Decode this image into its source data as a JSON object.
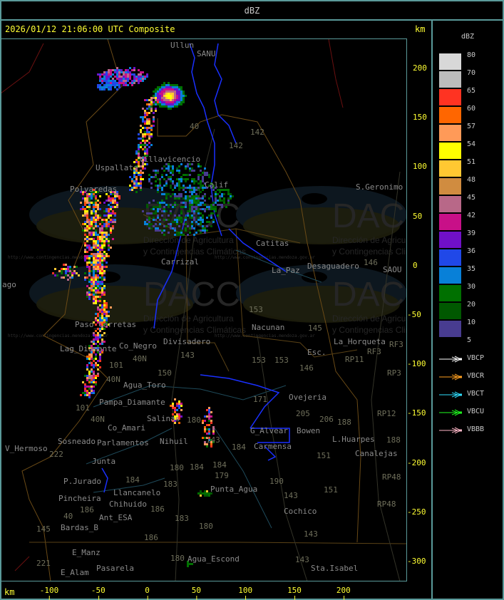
{
  "window": {
    "title": "dBZ"
  },
  "header": {
    "timestamp": "2026/01/12 21:06:00 UTC Composite",
    "unit_top": "km",
    "unit_bottom": "km"
  },
  "axes": {
    "x_ticks": [
      "-100",
      "-50",
      "0",
      "50",
      "100",
      "150",
      "200"
    ],
    "y_ticks": [
      "200",
      "150",
      "100",
      "50",
      "0",
      "-50",
      "-100",
      "-150",
      "-200",
      "-250",
      "-300"
    ]
  },
  "legend": {
    "title": "dBZ",
    "levels": [
      {
        "label": "80",
        "color": "#d8d8d8"
      },
      {
        "label": "70",
        "color": "#bcbcbc"
      },
      {
        "label": "65",
        "color": "#ff3322"
      },
      {
        "label": "60",
        "color": "#ff6600"
      },
      {
        "label": "57",
        "color": "#ff9a58"
      },
      {
        "label": "54",
        "color": "#ffff00"
      },
      {
        "label": "51",
        "color": "#ffc832"
      },
      {
        "label": "48",
        "color": "#d08c40"
      },
      {
        "label": "45",
        "color": "#b86888"
      },
      {
        "label": "42",
        "color": "#c81088"
      },
      {
        "label": "39",
        "color": "#7010c8"
      },
      {
        "label": "36",
        "color": "#2048e8"
      },
      {
        "label": "35",
        "color": "#0880d8"
      },
      {
        "label": "30",
        "color": "#007000"
      },
      {
        "label": "20",
        "color": "#005800"
      },
      {
        "label": "10",
        "color": "#483c90"
      }
    ],
    "bottom_label": "5",
    "radars": [
      {
        "label": "VBCP",
        "color": "#ffffff"
      },
      {
        "label": "VBCR",
        "color": "#ffa020"
      },
      {
        "label": "VBCT",
        "color": "#30e0ff"
      },
      {
        "label": "VBCU",
        "color": "#20ff20"
      },
      {
        "label": "VBBB",
        "color": "#ffb8c8"
      }
    ]
  },
  "watermark": {
    "logo_text": "DACC",
    "line1": "Dirección de Agricultura",
    "line2": "y Contingencias Climáticas",
    "url": "http://www.contingencias.mendoza.gov.ar"
  },
  "map": {
    "places": [
      "Ullun",
      "SANU",
      "Uspallata",
      "Villavicencio",
      "Polvaredas",
      "Calif",
      "Carrizal",
      "Catitas",
      "La_Paz",
      "Desaguadero",
      "S.Geronimo",
      "SAOU",
      "ago",
      "Paso_Carretas",
      "Lag_Diamante",
      "Co_Negro",
      "Divisadero",
      "Nacunan",
      "La_Horqueta",
      "Esc.",
      "Agua_Toro",
      "Pampa_Diamante",
      "Salinas",
      "Co_Amari",
      "Parlamentos",
      "Sosneado",
      "Nihuil",
      "V_Hermoso",
      "Junta",
      "P.Jurado",
      "Pincheira",
      "Llancanelo",
      "Chihuido",
      "Ant_ESA",
      "Bardas_B",
      "E_Manz",
      "E_Alam",
      "Pasarela",
      "Agua_Escond",
      "Punta_Agua",
      "Carmensa",
      "G_Alvear",
      "Bowen",
      "Ovejeria",
      "L.Huarpes",
      "Canalejas",
      "Cochico",
      "Sta.Isabel"
    ],
    "routes": [
      "40",
      "142",
      "142",
      "146",
      "RF3",
      "RF3",
      "RP11",
      "153",
      "153",
      "145",
      "40N",
      "143",
      "153",
      "146",
      "101",
      "40N",
      "150",
      "101",
      "40N",
      "180",
      "222",
      "180",
      "184",
      "184",
      "184",
      "183",
      "186",
      "186",
      "183",
      "40",
      "145",
      "180",
      "186",
      "221",
      "180",
      "179",
      "190",
      "184",
      "143",
      "171",
      "205",
      "206",
      "188",
      "151",
      "151",
      "143",
      "143",
      "143",
      "188",
      "RP12",
      "RP3",
      "RP48",
      "RP48"
    ]
  }
}
